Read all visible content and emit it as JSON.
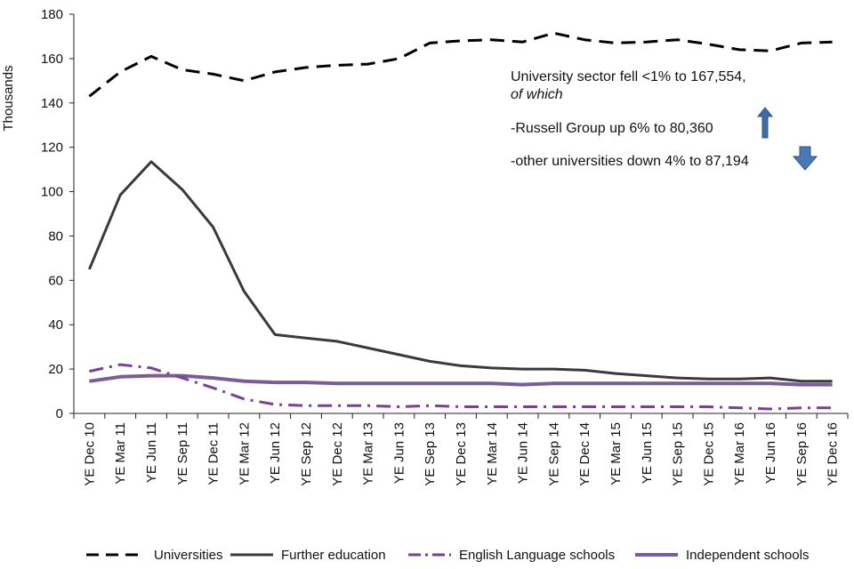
{
  "chart_data": {
    "type": "line",
    "ylabel": "Thousands",
    "xlabel": "",
    "ylim": [
      0,
      180
    ],
    "yticks": [
      0,
      20,
      40,
      60,
      80,
      100,
      120,
      140,
      160,
      180
    ],
    "categories": [
      "YE Dec 10",
      "YE Mar 11",
      "YE Jun 11",
      "YE Sep 11",
      "YE Dec 11",
      "YE Mar 12",
      "YE Jun 12",
      "YE Sep 12",
      "YE Dec 12",
      "YE Mar 13",
      "YE Jun 13",
      "YE Sep 13",
      "YE Dec 13",
      "YE Mar 14",
      "YE Jun 14",
      "YE Sep 14",
      "YE Dec 14",
      "YE Mar 15",
      "YE Jun 15",
      "YE Sep 15",
      "YE Dec 15",
      "YE Mar 16",
      "YE Jun 16",
      "YE Sep 16",
      "YE Dec 16"
    ],
    "series": [
      {
        "name": "Universities",
        "color": "#000000",
        "style": "dashed",
        "values": [
          143,
          154,
          161,
          155,
          153,
          150,
          154,
          156,
          157,
          157.5,
          160,
          167,
          168,
          168.5,
          167.5,
          171.5,
          168.5,
          167,
          167.5,
          168.5,
          166.5,
          164,
          163.5,
          167,
          167.5
        ]
      },
      {
        "name": "Further education",
        "color": "#3a3a3a",
        "style": "solid",
        "values": [
          65,
          98.5,
          113.5,
          101,
          84,
          55,
          35.5,
          34,
          32.5,
          29.5,
          26.5,
          23.5,
          21.5,
          20.5,
          20,
          20,
          19.5,
          18,
          17,
          16,
          15.5,
          15.5,
          16,
          14.5,
          14.5
        ]
      },
      {
        "name": "English Language schools",
        "color": "#7b3f95",
        "style": "dashdot",
        "values": [
          19,
          22,
          20.5,
          16,
          11.5,
          6.5,
          4,
          3.5,
          3.5,
          3.5,
          3,
          3.5,
          3,
          3,
          3,
          3,
          3,
          3,
          3,
          3,
          3,
          2.5,
          2,
          2.5,
          2.5
        ]
      },
      {
        "name": "Independent schools",
        "color": "#7b5c9b",
        "style": "solid-thick",
        "values": [
          14.5,
          16.5,
          17,
          17,
          16,
          14.5,
          14,
          14,
          13.5,
          13.5,
          13.5,
          13.5,
          13.5,
          13.5,
          13,
          13.5,
          13.5,
          13.5,
          13.5,
          13.5,
          13.5,
          13.5,
          13.5,
          13,
          13
        ]
      }
    ],
    "annotations": {
      "line1": "University sector fell  <1% to 167,554,",
      "line2": "of which",
      "line3": "-Russell Group up 6% to 80,360",
      "line4": "-other universities down 4% to 87,194"
    },
    "legend_position": "bottom",
    "arrow_up_color": "#3f6ba8",
    "arrow_down_color": "#3f6ba8"
  }
}
